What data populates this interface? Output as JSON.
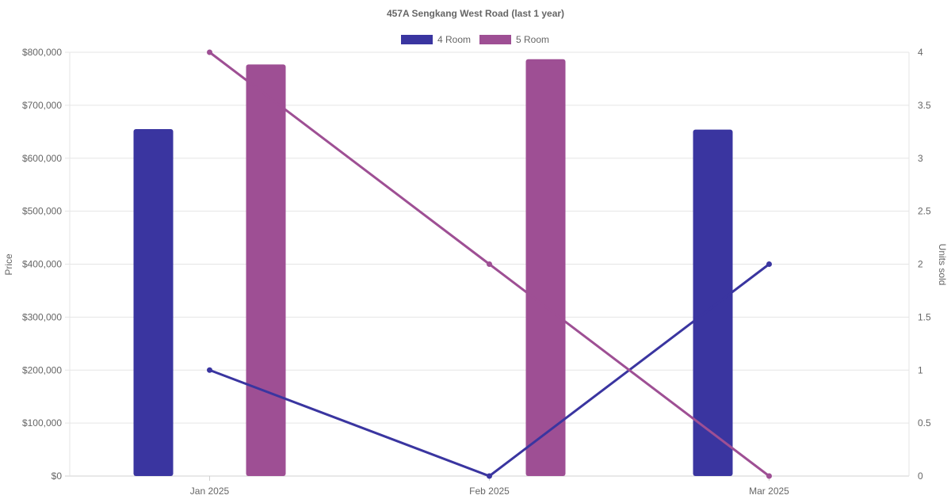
{
  "chart_data": {
    "type": "bar",
    "title": "457A Sengkang West Road (last 1 year)",
    "categories": [
      "Jan 2025",
      "Feb 2025",
      "Mar 2025"
    ],
    "y_left": {
      "label": "Price",
      "min": 0,
      "max": 800000,
      "ticks": [
        "$0",
        "$100,000",
        "$200,000",
        "$300,000",
        "$400,000",
        "$500,000",
        "$600,000",
        "$700,000",
        "$800,000"
      ]
    },
    "y_right": {
      "label": "Units sold",
      "min": 0,
      "max": 4,
      "ticks": [
        "0",
        "0.5",
        "1",
        "1.5",
        "2",
        "2.5",
        "3",
        "3.5",
        "4"
      ]
    },
    "legend": {
      "position": "top"
    },
    "grid": true,
    "series": [
      {
        "name": "4 Room",
        "color": "#3a35a0",
        "bar_values": [
          655000,
          null,
          654000
        ],
        "line_values": [
          1,
          0,
          2
        ]
      },
      {
        "name": "5 Room",
        "color": "#9e4f94",
        "bar_values": [
          777000,
          null,
          null
        ],
        "bar_values_shifted": [
          null,
          787000,
          null
        ],
        "line_values": [
          4,
          2,
          0
        ]
      }
    ]
  }
}
